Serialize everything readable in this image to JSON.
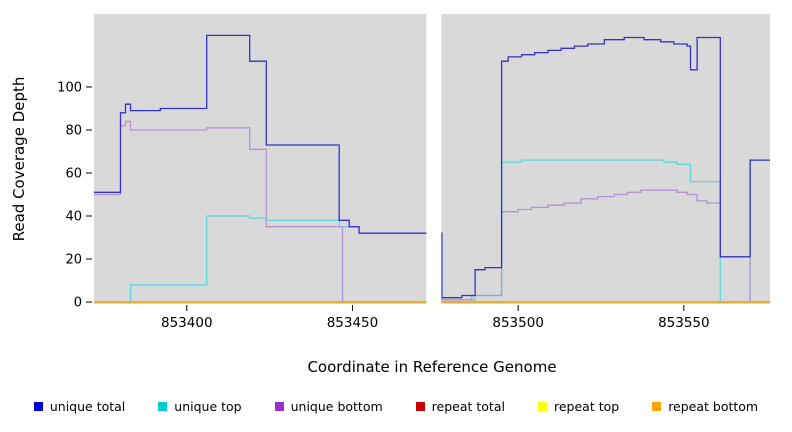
{
  "figure": {
    "background": "#ffffff"
  },
  "chart_data": {
    "type": "line",
    "subtype": "step",
    "title": "",
    "xlabel": "Coordinate in Reference Genome",
    "ylabel": "Read Coverage Depth",
    "xlim": [
      853372,
      853576
    ],
    "ylim": [
      0,
      133
    ],
    "x_ticks": [
      853400,
      853450,
      853500,
      853550
    ],
    "y_ticks": [
      0,
      20,
      40,
      60,
      80,
      100
    ],
    "grid": false,
    "plot_bg": "#d9d9d9",
    "gap_x": [
      853472.3,
      853476.8
    ],
    "legend_position": "bottom",
    "draw_order": [
      1,
      2,
      3,
      4,
      5,
      0
    ],
    "series": [
      {
        "name": "unique total",
        "color": "#3434C8",
        "steps": [
          [
            853372,
            51
          ],
          [
            853380,
            88
          ],
          [
            853381.5,
            92
          ],
          [
            853383,
            89
          ],
          [
            853392,
            90
          ],
          [
            853406,
            124
          ],
          [
            853419,
            112
          ],
          [
            853424,
            73
          ],
          [
            853446,
            38
          ],
          [
            853449,
            35
          ],
          [
            853452,
            32
          ],
          [
            853477,
            2
          ],
          [
            853483,
            3
          ],
          [
            853487,
            15
          ],
          [
            853490,
            16
          ],
          [
            853495,
            112
          ],
          [
            853497,
            114
          ],
          [
            853501,
            115
          ],
          [
            853505,
            116
          ],
          [
            853509,
            117
          ],
          [
            853513,
            118
          ],
          [
            853517,
            119
          ],
          [
            853521,
            120
          ],
          [
            853526,
            122
          ],
          [
            853532,
            123
          ],
          [
            853538,
            122
          ],
          [
            853543,
            121
          ],
          [
            853547,
            120
          ],
          [
            853551,
            119
          ],
          [
            853552,
            108
          ],
          [
            853554,
            123
          ],
          [
            853561,
            21
          ],
          [
            853570,
            66
          ]
        ]
      },
      {
        "name": "unique top",
        "color": "#5FD8DC",
        "steps": [
          [
            853372,
            0
          ],
          [
            853383,
            8
          ],
          [
            853406,
            40
          ],
          [
            853419,
            39
          ],
          [
            853424,
            38
          ],
          [
            853446,
            35
          ],
          [
            853452,
            32
          ],
          [
            853477,
            1
          ],
          [
            853487,
            3
          ],
          [
            853495,
            65
          ],
          [
            853501,
            66
          ],
          [
            853544,
            65
          ],
          [
            853548,
            64
          ],
          [
            853552,
            56
          ],
          [
            853561,
            0
          ],
          [
            853570,
            66
          ]
        ]
      },
      {
        "name": "unique bottom",
        "color": "#B494D2",
        "steps": [
          [
            853372,
            50
          ],
          [
            853380,
            82
          ],
          [
            853381.5,
            84
          ],
          [
            853383,
            80
          ],
          [
            853406,
            81
          ],
          [
            853419,
            71
          ],
          [
            853424,
            35
          ],
          [
            853447,
            0
          ],
          [
            853477,
            1
          ],
          [
            853486,
            3
          ],
          [
            853495,
            42
          ],
          [
            853500,
            43
          ],
          [
            853504,
            44
          ],
          [
            853509,
            45
          ],
          [
            853514,
            46
          ],
          [
            853519,
            48
          ],
          [
            853524,
            49
          ],
          [
            853529,
            50
          ],
          [
            853533,
            51
          ],
          [
            853537,
            52
          ],
          [
            853548,
            51
          ],
          [
            853551,
            50
          ],
          [
            853554,
            47
          ],
          [
            853557,
            46
          ],
          [
            853561,
            21
          ],
          [
            853570,
            0
          ]
        ]
      },
      {
        "name": "repeat total",
        "color": "#CD0000",
        "steps": [
          [
            853372,
            0
          ]
        ]
      },
      {
        "name": "repeat top",
        "color": "#FFFF00",
        "steps": [
          [
            853372,
            0
          ]
        ]
      },
      {
        "name": "repeat bottom",
        "color": "#FFA500",
        "steps": [
          [
            853372,
            0
          ]
        ]
      }
    ]
  },
  "legend": {
    "items": [
      {
        "label": "unique total",
        "color": "#0000CD"
      },
      {
        "label": "unique top",
        "color": "#00CED1"
      },
      {
        "label": "unique bottom",
        "color": "#9932CC"
      },
      {
        "label": "repeat total",
        "color": "#CD0000"
      },
      {
        "label": "repeat top",
        "color": "#FFFF00"
      },
      {
        "label": "repeat bottom",
        "color": "#FFA500"
      }
    ]
  }
}
